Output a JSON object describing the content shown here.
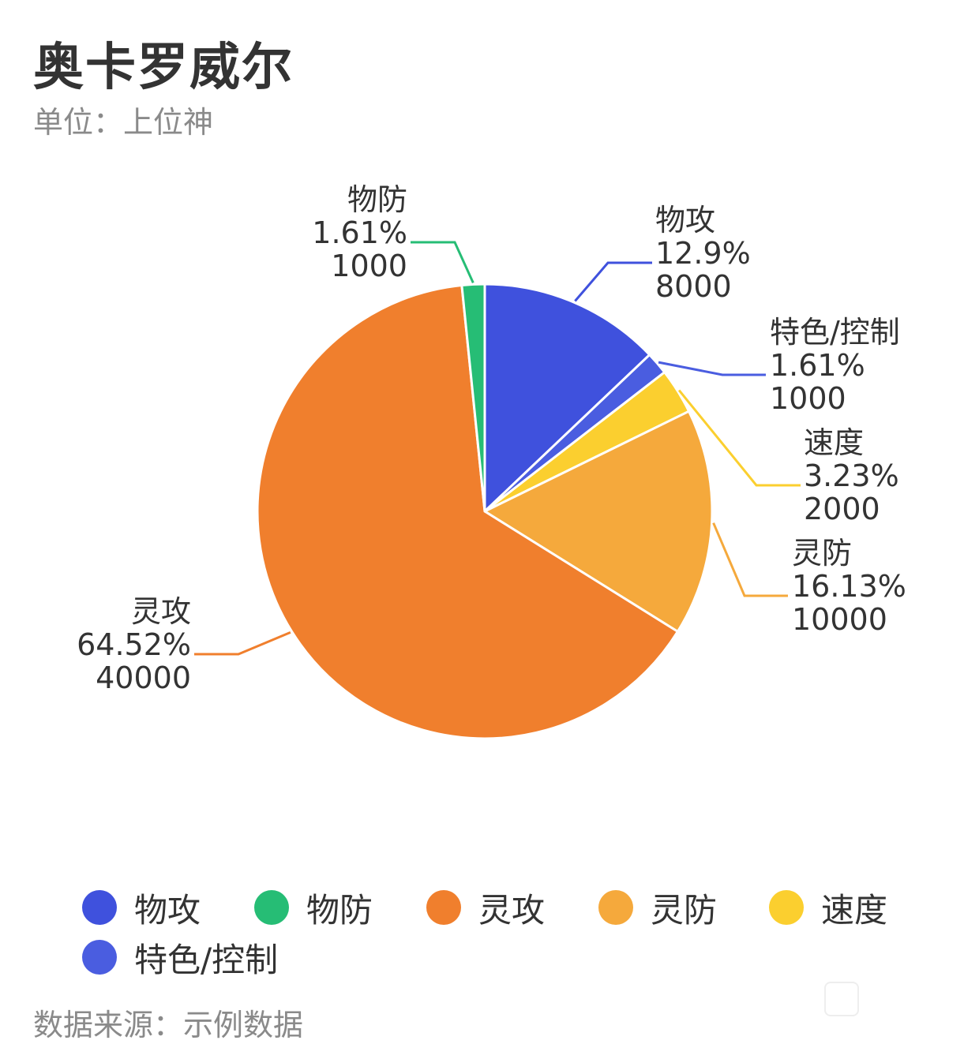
{
  "chart_data": {
    "type": "pie",
    "title": "奥卡罗威尔",
    "subtitle": "单位：上位神",
    "source": "数据来源：示例数据",
    "slices": [
      {
        "name": "物攻",
        "value": 8000,
        "percent": "12.9%",
        "color": "#3f51dd"
      },
      {
        "name": "特色/控制",
        "value": 1000,
        "percent": "1.61%",
        "color": "#4a5de0"
      },
      {
        "name": "速度",
        "value": 2000,
        "percent": "3.23%",
        "color": "#fbcf2f"
      },
      {
        "name": "灵防",
        "value": 10000,
        "percent": "16.13%",
        "color": "#f5a93c"
      },
      {
        "name": "灵攻",
        "value": 40000,
        "percent": "64.52%",
        "color": "#f07f2d"
      },
      {
        "name": "物防",
        "value": 1000,
        "percent": "1.61%",
        "color": "#26bd75"
      }
    ],
    "legend": {
      "position": "bottom",
      "items": [
        {
          "name": "物攻",
          "color": "#3f51dd"
        },
        {
          "name": "物防",
          "color": "#26bd75"
        },
        {
          "name": "灵攻",
          "color": "#f07f2d"
        },
        {
          "name": "灵防",
          "color": "#f5a93c"
        },
        {
          "name": "速度",
          "color": "#fbcf2f"
        },
        {
          "name": "特色/控制",
          "color": "#4a5de0"
        }
      ]
    }
  }
}
